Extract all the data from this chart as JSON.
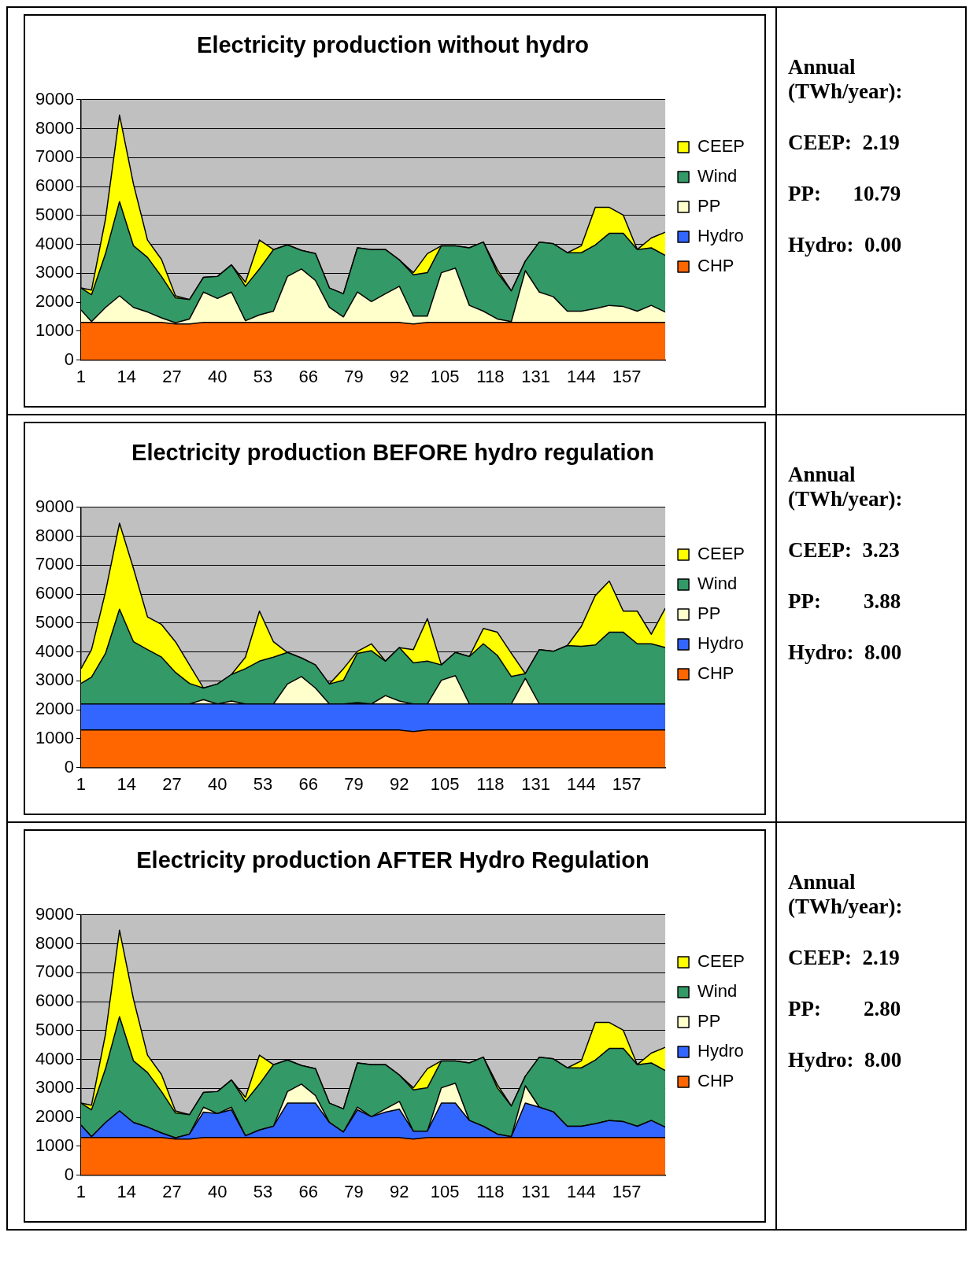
{
  "chart_data": [
    {
      "type": "area",
      "title": "Electricity production without hydro",
      "stacked": true,
      "legend": "right",
      "grid": "y",
      "xlim": [
        1,
        168
      ],
      "xticks": [
        1,
        14,
        27,
        40,
        53,
        66,
        79,
        92,
        105,
        118,
        131,
        144,
        157
      ],
      "ylim": [
        0,
        9000
      ],
      "yticks": [
        0,
        1000,
        2000,
        3000,
        4000,
        5000,
        6000,
        7000,
        8000,
        9000
      ],
      "x": [
        1,
        4,
        8,
        12,
        16,
        20,
        24,
        28,
        32,
        36,
        40,
        44,
        48,
        52,
        56,
        60,
        64,
        68,
        72,
        76,
        80,
        84,
        88,
        92,
        96,
        100,
        104,
        108,
        112,
        116,
        120,
        124,
        128,
        132,
        136,
        140,
        144,
        148,
        152,
        156,
        160,
        164,
        168
      ],
      "series": [
        {
          "name": "CHP",
          "color": "#ff6600",
          "values": [
            1300,
            1300,
            1300,
            1300,
            1300,
            1300,
            1300,
            1250,
            1250,
            1300,
            1300,
            1300,
            1300,
            1300,
            1300,
            1300,
            1300,
            1300,
            1300,
            1300,
            1300,
            1300,
            1300,
            1300,
            1250,
            1300,
            1300,
            1300,
            1300,
            1300,
            1300,
            1300,
            1300,
            1300,
            1300,
            1300,
            1300,
            1300,
            1300,
            1300,
            1300,
            1300,
            1300
          ]
        },
        {
          "name": "Hydro",
          "color": "#3366ff",
          "values": [
            null,
            null,
            null,
            null,
            null,
            null,
            null,
            null,
            null,
            null,
            null,
            null,
            null,
            null,
            null,
            null,
            null,
            null,
            null,
            null,
            null,
            null,
            null,
            null,
            null,
            null,
            null,
            null,
            null,
            null,
            null,
            null,
            null,
            null,
            null,
            null,
            null,
            null,
            null,
            null,
            null,
            null,
            null
          ]
        },
        {
          "name": "PP",
          "color": "#ffffcc",
          "values": [
            430,
            30,
            520,
            920,
            520,
            360,
            160,
            40,
            170,
            1050,
            830,
            1050,
            60,
            260,
            390,
            1590,
            1850,
            1450,
            520,
            190,
            1050,
            720,
            990,
            1250,
            270,
            220,
            1720,
            1880,
            590,
            390,
            120,
            30,
            1790,
            1050,
            890,
            390,
            390,
            480,
            590,
            550,
            390,
            590,
            360
          ]
        },
        {
          "name": "Wind",
          "color": "#339966",
          "values": [
            760,
            930,
            1860,
            3260,
            2130,
            1890,
            1430,
            860,
            670,
            510,
            760,
            940,
            1190,
            1590,
            2130,
            1090,
            640,
            930,
            670,
            800,
            1530,
            1800,
            1530,
            910,
            1430,
            1500,
            930,
            770,
            1990,
            2390,
            1600,
            1060,
            330,
            1730,
            1830,
            2020,
            2020,
            2200,
            2490,
            2530,
            2130,
            1990,
            1960
          ]
        },
        {
          "name": "CEEP",
          "color": "#ffff00",
          "values": [
            0,
            160,
            1200,
            2990,
            2130,
            600,
            590,
            70,
            0,
            0,
            0,
            0,
            140,
            1000,
            0,
            0,
            0,
            0,
            0,
            0,
            0,
            0,
            0,
            0,
            70,
            660,
            0,
            0,
            0,
            0,
            110,
            0,
            0,
            0,
            0,
            0,
            240,
            1300,
            900,
            630,
            0,
            340,
            800
          ]
        }
      ]
    },
    {
      "type": "other",
      "title": "Annual (TWh/year):",
      "annotations": [
        "CEEP:  2.19",
        "PP:      10.79",
        "Hydro:  0.00"
      ]
    },
    {
      "type": "area",
      "title": "Electricity production BEFORE hydro regulation",
      "stacked": true,
      "legend": "right",
      "grid": "y",
      "xlim": [
        1,
        168
      ],
      "xticks": [
        1,
        14,
        27,
        40,
        53,
        66,
        79,
        92,
        105,
        118,
        131,
        144,
        157
      ],
      "ylim": [
        0,
        9000
      ],
      "yticks": [
        0,
        1000,
        2000,
        3000,
        4000,
        5000,
        6000,
        7000,
        8000,
        9000
      ],
      "x": [
        1,
        4,
        8,
        12,
        16,
        20,
        24,
        28,
        32,
        36,
        40,
        44,
        48,
        52,
        56,
        60,
        64,
        68,
        72,
        76,
        80,
        84,
        88,
        92,
        96,
        100,
        104,
        108,
        112,
        116,
        120,
        124,
        128,
        132,
        136,
        140,
        144,
        148,
        152,
        156,
        160,
        164,
        168
      ],
      "series": [
        {
          "name": "CHP",
          "color": "#ff6600",
          "values": [
            1300,
            1300,
            1300,
            1300,
            1300,
            1300,
            1300,
            1300,
            1300,
            1300,
            1300,
            1300,
            1300,
            1300,
            1300,
            1300,
            1300,
            1300,
            1300,
            1300,
            1300,
            1300,
            1300,
            1300,
            1250,
            1300,
            1300,
            1300,
            1300,
            1300,
            1300,
            1300,
            1300,
            1300,
            1300,
            1300,
            1300,
            1300,
            1300,
            1300,
            1300,
            1300,
            1300
          ]
        },
        {
          "name": "Hydro",
          "color": "#3366ff",
          "values": [
            900,
            900,
            900,
            900,
            900,
            900,
            900,
            900,
            900,
            900,
            900,
            900,
            900,
            900,
            900,
            900,
            900,
            900,
            900,
            900,
            900,
            900,
            900,
            900,
            950,
            900,
            900,
            900,
            900,
            900,
            900,
            900,
            900,
            900,
            900,
            900,
            900,
            900,
            900,
            900,
            900,
            900,
            900
          ]
        },
        {
          "name": "PP",
          "color": "#ffffcc",
          "values": [
            0,
            0,
            0,
            0,
            0,
            0,
            0,
            0,
            0,
            150,
            0,
            100,
            0,
            0,
            0,
            690,
            950,
            550,
            0,
            0,
            50,
            0,
            290,
            100,
            0,
            0,
            820,
            980,
            0,
            0,
            0,
            0,
            890,
            0,
            0,
            0,
            0,
            0,
            0,
            0,
            0,
            0,
            0
          ]
        },
        {
          "name": "Wind",
          "color": "#339966",
          "values": [
            710,
            930,
            1750,
            3280,
            2150,
            1880,
            1620,
            1090,
            710,
            400,
            690,
            920,
            1220,
            1480,
            1620,
            1090,
            640,
            800,
            690,
            820,
            1700,
            1840,
            1190,
            1850,
            1420,
            1480,
            530,
            800,
            1640,
            2080,
            1680,
            950,
            160,
            1880,
            1820,
            2020,
            1990,
            2040,
            2480,
            2480,
            2080,
            2080,
            1950
          ]
        },
        {
          "name": "CEEP",
          "color": "#ffff00",
          "values": [
            510,
            950,
            2130,
            2970,
            2530,
            1130,
            1130,
            1060,
            640,
            0,
            0,
            0,
            400,
            1730,
            530,
            0,
            0,
            0,
            0,
            400,
            70,
            240,
            0,
            0,
            460,
            1470,
            0,
            0,
            0,
            530,
            800,
            800,
            0,
            0,
            0,
            0,
            690,
            1710,
            1770,
            730,
            1130,
            330,
            1360
          ]
        }
      ]
    },
    {
      "type": "other",
      "title": "Annual (TWh/year):",
      "annotations": [
        "CEEP:  3.23",
        "PP:        3.88",
        "Hydro:  8.00"
      ]
    },
    {
      "type": "area",
      "title": "Electricity production AFTER Hydro Regulation",
      "stacked": true,
      "legend": "right",
      "grid": "y",
      "xlim": [
        1,
        168
      ],
      "xticks": [
        1,
        14,
        27,
        40,
        53,
        66,
        79,
        92,
        105,
        118,
        131,
        144,
        157
      ],
      "ylim": [
        0,
        9000
      ],
      "yticks": [
        0,
        1000,
        2000,
        3000,
        4000,
        5000,
        6000,
        7000,
        8000,
        9000
      ],
      "x": [
        1,
        4,
        8,
        12,
        16,
        20,
        24,
        28,
        32,
        36,
        40,
        44,
        48,
        52,
        56,
        60,
        64,
        68,
        72,
        76,
        80,
        84,
        88,
        92,
        96,
        100,
        104,
        108,
        112,
        116,
        120,
        124,
        128,
        132,
        136,
        140,
        144,
        148,
        152,
        156,
        160,
        164,
        168
      ],
      "series": [
        {
          "name": "CHP",
          "color": "#ff6600",
          "values": [
            1300,
            1300,
            1300,
            1300,
            1300,
            1300,
            1300,
            1250,
            1250,
            1300,
            1300,
            1300,
            1300,
            1300,
            1300,
            1300,
            1300,
            1300,
            1300,
            1300,
            1300,
            1300,
            1300,
            1300,
            1250,
            1300,
            1300,
            1300,
            1300,
            1300,
            1300,
            1300,
            1300,
            1300,
            1300,
            1300,
            1300,
            1300,
            1300,
            1300,
            1300,
            1300,
            1300
          ]
        },
        {
          "name": "Hydro",
          "color": "#3366ff",
          "values": [
            430,
            30,
            520,
            920,
            520,
            360,
            160,
            40,
            170,
            880,
            830,
            960,
            60,
            260,
            390,
            1190,
            1190,
            1190,
            520,
            190,
            960,
            720,
            880,
            980,
            270,
            220,
            1190,
            1190,
            590,
            390,
            120,
            30,
            1190,
            1050,
            890,
            390,
            390,
            480,
            590,
            550,
            390,
            590,
            360
          ]
        },
        {
          "name": "PP",
          "color": "#ffffcc",
          "values": [
            0,
            0,
            0,
            0,
            0,
            0,
            0,
            0,
            0,
            170,
            0,
            90,
            0,
            0,
            0,
            400,
            660,
            260,
            0,
            0,
            90,
            0,
            110,
            270,
            0,
            0,
            530,
            690,
            0,
            0,
            0,
            0,
            600,
            0,
            0,
            0,
            0,
            0,
            0,
            0,
            0,
            0,
            0
          ]
        },
        {
          "name": "Wind",
          "color": "#339966",
          "values": [
            760,
            930,
            1860,
            3260,
            2130,
            1890,
            1430,
            860,
            670,
            510,
            760,
            940,
            1190,
            1590,
            2130,
            1090,
            640,
            930,
            670,
            800,
            1530,
            1800,
            1530,
            910,
            1430,
            1500,
            930,
            770,
            1990,
            2390,
            1600,
            1060,
            330,
            1730,
            1830,
            2020,
            2020,
            2200,
            2490,
            2530,
            2130,
            1990,
            1960
          ]
        },
        {
          "name": "CEEP",
          "color": "#ffff00",
          "values": [
            0,
            160,
            1200,
            2990,
            2130,
            600,
            590,
            70,
            0,
            0,
            0,
            0,
            140,
            1000,
            0,
            0,
            0,
            0,
            0,
            0,
            0,
            0,
            0,
            0,
            70,
            660,
            0,
            0,
            0,
            0,
            110,
            0,
            0,
            0,
            0,
            0,
            240,
            1300,
            900,
            630,
            0,
            340,
            800
          ]
        }
      ]
    },
    {
      "type": "other",
      "title": "Annual (TWh/year):",
      "annotations": [
        "CEEP:  2.19",
        "PP:        2.80",
        "Hydro:  8.00"
      ]
    }
  ]
}
